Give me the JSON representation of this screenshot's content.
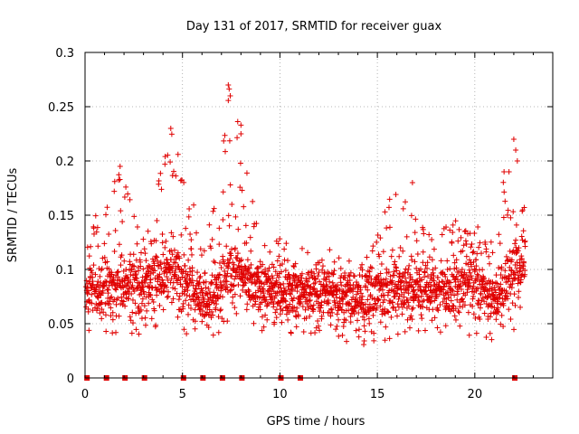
{
  "chart_data": {
    "type": "scatter",
    "title": "Day 131 of 2017, SRMTID for receiver guax",
    "xlabel": "GPS time / hours",
    "ylabel": "SRMTID / TECUs",
    "xlim": [
      0,
      24
    ],
    "ylim": [
      0,
      0.3
    ],
    "x_ticks": [
      0,
      5,
      10,
      15,
      20
    ],
    "x_tick_labels": [
      "0",
      "5",
      "10",
      "15",
      "20"
    ],
    "y_ticks": [
      0,
      0.05,
      0.1,
      0.15,
      0.2,
      0.25,
      0.3
    ],
    "y_tick_labels": [
      "0",
      "0.05",
      "0.1",
      "0.15",
      "0.2",
      "0.25",
      "0.3"
    ],
    "grid": true,
    "marker": "+",
    "color": "#e00000",
    "sample_interval_hours": 0.01,
    "data_coverage_hours": [
      0.05,
      22.6
    ],
    "zero_value_times": [
      0.1,
      1.1,
      2.05,
      3.05,
      5.05,
      6.05,
      7.05,
      8.05,
      10.05,
      11.05,
      22.05
    ],
    "envelope": [
      {
        "x": 0.0,
        "low": 0.04,
        "high": 0.13
      },
      {
        "x": 1.0,
        "low": 0.04,
        "high": 0.18
      },
      {
        "x": 2.0,
        "low": 0.04,
        "high": 0.19
      },
      {
        "x": 3.0,
        "low": 0.035,
        "high": 0.13
      },
      {
        "x": 4.0,
        "low": 0.045,
        "high": 0.2
      },
      {
        "x": 4.5,
        "low": 0.05,
        "high": 0.23
      },
      {
        "x": 5.0,
        "low": 0.04,
        "high": 0.19
      },
      {
        "x": 6.0,
        "low": 0.035,
        "high": 0.14
      },
      {
        "x": 7.0,
        "low": 0.04,
        "high": 0.2
      },
      {
        "x": 7.4,
        "low": 0.05,
        "high": 0.27
      },
      {
        "x": 8.0,
        "low": 0.045,
        "high": 0.23
      },
      {
        "x": 9.0,
        "low": 0.04,
        "high": 0.12
      },
      {
        "x": 10.0,
        "low": 0.04,
        "high": 0.13
      },
      {
        "x": 11.0,
        "low": 0.04,
        "high": 0.12
      },
      {
        "x": 12.0,
        "low": 0.04,
        "high": 0.12
      },
      {
        "x": 13.0,
        "low": 0.035,
        "high": 0.12
      },
      {
        "x": 14.0,
        "low": 0.03,
        "high": 0.12
      },
      {
        "x": 15.0,
        "low": 0.03,
        "high": 0.14
      },
      {
        "x": 16.0,
        "low": 0.04,
        "high": 0.18
      },
      {
        "x": 17.0,
        "low": 0.04,
        "high": 0.16
      },
      {
        "x": 18.0,
        "low": 0.04,
        "high": 0.13
      },
      {
        "x": 19.0,
        "low": 0.04,
        "high": 0.15
      },
      {
        "x": 20.0,
        "low": 0.035,
        "high": 0.16
      },
      {
        "x": 21.0,
        "low": 0.035,
        "high": 0.12
      },
      {
        "x": 21.5,
        "low": 0.04,
        "high": 0.19
      },
      {
        "x": 22.0,
        "low": 0.04,
        "high": 0.22
      },
      {
        "x": 22.6,
        "low": 0.07,
        "high": 0.16
      }
    ],
    "baseline": [
      {
        "x": 0.0,
        "y": 0.08
      },
      {
        "x": 2.0,
        "y": 0.085
      },
      {
        "x": 4.5,
        "y": 0.1
      },
      {
        "x": 6.0,
        "y": 0.07
      },
      {
        "x": 7.5,
        "y": 0.1
      },
      {
        "x": 9.0,
        "y": 0.08
      },
      {
        "x": 12.0,
        "y": 0.08
      },
      {
        "x": 14.0,
        "y": 0.075
      },
      {
        "x": 16.0,
        "y": 0.085
      },
      {
        "x": 18.0,
        "y": 0.08
      },
      {
        "x": 20.0,
        "y": 0.09
      },
      {
        "x": 21.0,
        "y": 0.07
      },
      {
        "x": 22.6,
        "y": 0.11
      }
    ],
    "spikes": [
      {
        "x": 4.4,
        "y": 0.23
      },
      {
        "x": 7.35,
        "y": 0.27
      },
      {
        "x": 7.45,
        "y": 0.26
      },
      {
        "x": 8.0,
        "y": 0.233
      },
      {
        "x": 8.0,
        "y": 0.225
      },
      {
        "x": 16.8,
        "y": 0.18
      },
      {
        "x": 21.5,
        "y": 0.19
      },
      {
        "x": 22.0,
        "y": 0.22
      },
      {
        "x": 22.1,
        "y": 0.21
      },
      {
        "x": 1.8,
        "y": 0.195
      },
      {
        "x": 4.1,
        "y": 0.197
      }
    ]
  }
}
